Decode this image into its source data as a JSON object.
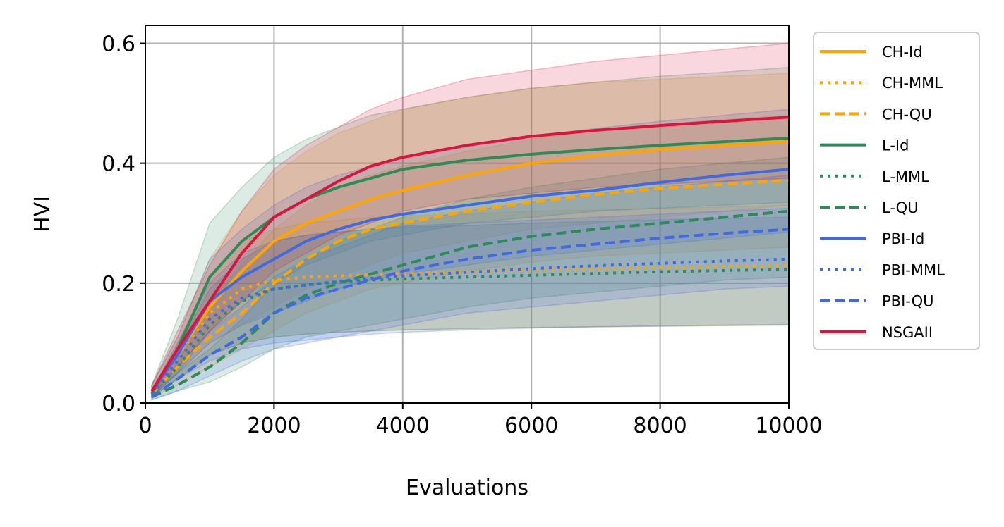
{
  "chart_data": {
    "type": "line",
    "xlabel": "Evaluations",
    "ylabel": "HVI",
    "xlim": [
      0,
      10000
    ],
    "ylim": [
      0,
      0.63
    ],
    "xticks": [
      0,
      2000,
      4000,
      6000,
      8000,
      10000
    ],
    "xtick_labels": [
      "0",
      "2000",
      "4000",
      "6000",
      "8000",
      "10000"
    ],
    "yticks": [
      0.0,
      0.2,
      0.4,
      0.6
    ],
    "ytick_labels": [
      "0.0",
      "0.2",
      "0.4",
      "0.6"
    ],
    "grid": true,
    "legend_position": "outside-right",
    "x": [
      100,
      500,
      1000,
      1500,
      2000,
      2500,
      3000,
      3500,
      4000,
      5000,
      6000,
      7000,
      8000,
      9000,
      10000
    ],
    "series": [
      {
        "name": "CH-Id",
        "color": "#FFA500",
        "dash": "solid",
        "values": [
          0.02,
          0.08,
          0.16,
          0.22,
          0.27,
          0.3,
          0.32,
          0.34,
          0.355,
          0.38,
          0.4,
          0.413,
          0.423,
          0.43,
          0.437
        ],
        "band_lower": [
          0.01,
          0.05,
          0.1,
          0.13,
          0.16,
          0.19,
          0.21,
          0.23,
          0.25,
          0.27,
          0.29,
          0.3,
          0.31,
          0.32,
          0.33
        ],
        "band_upper": [
          0.03,
          0.11,
          0.24,
          0.32,
          0.38,
          0.42,
          0.45,
          0.47,
          0.49,
          0.51,
          0.525,
          0.535,
          0.54,
          0.545,
          0.55
        ]
      },
      {
        "name": "CH-MML",
        "color": "#FFA500",
        "dash": "dotted",
        "values": [
          0.015,
          0.07,
          0.15,
          0.19,
          0.205,
          0.21,
          0.212,
          0.214,
          0.216,
          0.219,
          0.222,
          0.224,
          0.226,
          0.228,
          0.23
        ],
        "band_lower": [
          0.01,
          0.04,
          0.08,
          0.1,
          0.11,
          0.115,
          0.118,
          0.12,
          0.122,
          0.124,
          0.126,
          0.127,
          0.128,
          0.129,
          0.13
        ],
        "band_upper": [
          0.02,
          0.1,
          0.21,
          0.27,
          0.29,
          0.3,
          0.305,
          0.31,
          0.312,
          0.315,
          0.32,
          0.322,
          0.325,
          0.327,
          0.33
        ]
      },
      {
        "name": "CH-QU",
        "color": "#FFA500",
        "dash": "dashed",
        "values": [
          0.015,
          0.06,
          0.11,
          0.15,
          0.2,
          0.24,
          0.27,
          0.29,
          0.3,
          0.32,
          0.335,
          0.348,
          0.358,
          0.365,
          0.372
        ],
        "band_lower": [
          0.01,
          0.03,
          0.06,
          0.09,
          0.12,
          0.15,
          0.17,
          0.19,
          0.2,
          0.22,
          0.235,
          0.245,
          0.25,
          0.255,
          0.26
        ],
        "band_upper": [
          0.02,
          0.09,
          0.17,
          0.23,
          0.29,
          0.33,
          0.36,
          0.38,
          0.395,
          0.42,
          0.44,
          0.455,
          0.465,
          0.473,
          0.48
        ]
      },
      {
        "name": "L-Id",
        "color": "#2E8B57",
        "dash": "solid",
        "values": [
          0.015,
          0.09,
          0.21,
          0.27,
          0.31,
          0.34,
          0.36,
          0.375,
          0.39,
          0.405,
          0.415,
          0.423,
          0.43,
          0.436,
          0.442
        ],
        "band_lower": [
          0.01,
          0.05,
          0.12,
          0.17,
          0.2,
          0.23,
          0.25,
          0.27,
          0.28,
          0.3,
          0.31,
          0.32,
          0.325,
          0.33,
          0.335
        ],
        "band_upper": [
          0.03,
          0.14,
          0.3,
          0.36,
          0.41,
          0.44,
          0.46,
          0.48,
          0.49,
          0.51,
          0.525,
          0.535,
          0.545,
          0.552,
          0.56
        ]
      },
      {
        "name": "L-MML",
        "color": "#2E8B57",
        "dash": "dotted",
        "values": [
          0.015,
          0.06,
          0.13,
          0.17,
          0.19,
          0.197,
          0.202,
          0.205,
          0.207,
          0.21,
          0.213,
          0.216,
          0.219,
          0.221,
          0.223
        ],
        "band_lower": [
          0.01,
          0.04,
          0.08,
          0.1,
          0.11,
          0.115,
          0.118,
          0.12,
          0.122,
          0.124,
          0.126,
          0.127,
          0.128,
          0.129,
          0.13
        ],
        "band_upper": [
          0.02,
          0.09,
          0.19,
          0.24,
          0.27,
          0.28,
          0.285,
          0.29,
          0.293,
          0.296,
          0.3,
          0.303,
          0.306,
          0.308,
          0.31
        ]
      },
      {
        "name": "L-QU",
        "color": "#2E8B57",
        "dash": "dashed",
        "values": [
          0.01,
          0.03,
          0.06,
          0.1,
          0.15,
          0.18,
          0.2,
          0.215,
          0.23,
          0.26,
          0.278,
          0.29,
          0.3,
          0.31,
          0.32
        ],
        "band_lower": [
          0.005,
          0.02,
          0.035,
          0.06,
          0.09,
          0.11,
          0.12,
          0.13,
          0.14,
          0.16,
          0.175,
          0.185,
          0.195,
          0.205,
          0.21
        ],
        "band_upper": [
          0.02,
          0.05,
          0.09,
          0.14,
          0.2,
          0.24,
          0.27,
          0.29,
          0.31,
          0.34,
          0.36,
          0.375,
          0.39,
          0.4,
          0.41
        ]
      },
      {
        "name": "PBI-Id",
        "color": "#4169E1",
        "dash": "solid",
        "values": [
          0.02,
          0.08,
          0.17,
          0.21,
          0.24,
          0.27,
          0.29,
          0.305,
          0.315,
          0.33,
          0.345,
          0.355,
          0.368,
          0.38,
          0.39
        ],
        "band_lower": [
          0.01,
          0.05,
          0.1,
          0.13,
          0.15,
          0.17,
          0.19,
          0.205,
          0.215,
          0.23,
          0.245,
          0.255,
          0.265,
          0.275,
          0.285
        ],
        "band_upper": [
          0.03,
          0.11,
          0.24,
          0.29,
          0.33,
          0.36,
          0.38,
          0.395,
          0.41,
          0.43,
          0.445,
          0.458,
          0.47,
          0.48,
          0.49
        ]
      },
      {
        "name": "PBI-MML",
        "color": "#4169E1",
        "dash": "dotted",
        "values": [
          0.015,
          0.07,
          0.14,
          0.175,
          0.19,
          0.197,
          0.203,
          0.208,
          0.212,
          0.218,
          0.224,
          0.229,
          0.233,
          0.237,
          0.24
        ],
        "band_lower": [
          0.01,
          0.04,
          0.07,
          0.09,
          0.1,
          0.105,
          0.11,
          0.115,
          0.118,
          0.122,
          0.125,
          0.127,
          0.129,
          0.13,
          0.131
        ],
        "band_upper": [
          0.02,
          0.1,
          0.2,
          0.25,
          0.27,
          0.28,
          0.285,
          0.29,
          0.295,
          0.3,
          0.305,
          0.31,
          0.315,
          0.32,
          0.325
        ]
      },
      {
        "name": "PBI-QU",
        "color": "#4169E1",
        "dash": "dashed",
        "values": [
          0.01,
          0.04,
          0.08,
          0.11,
          0.15,
          0.175,
          0.19,
          0.205,
          0.22,
          0.24,
          0.255,
          0.265,
          0.275,
          0.283,
          0.29
        ],
        "band_lower": [
          0.005,
          0.02,
          0.045,
          0.07,
          0.09,
          0.1,
          0.11,
          0.12,
          0.13,
          0.15,
          0.16,
          0.17,
          0.18,
          0.19,
          0.195
        ],
        "band_upper": [
          0.02,
          0.06,
          0.12,
          0.16,
          0.21,
          0.24,
          0.26,
          0.28,
          0.3,
          0.32,
          0.335,
          0.35,
          0.36,
          0.37,
          0.38
        ]
      },
      {
        "name": "NSGAII",
        "color": "#DC143C",
        "dash": "solid",
        "values": [
          0.02,
          0.09,
          0.17,
          0.25,
          0.31,
          0.34,
          0.37,
          0.395,
          0.41,
          0.43,
          0.445,
          0.455,
          0.463,
          0.47,
          0.477
        ],
        "band_lower": [
          0.01,
          0.06,
          0.12,
          0.17,
          0.22,
          0.25,
          0.28,
          0.3,
          0.32,
          0.34,
          0.35,
          0.36,
          0.365,
          0.37,
          0.375
        ],
        "band_upper": [
          0.03,
          0.12,
          0.23,
          0.32,
          0.39,
          0.43,
          0.46,
          0.49,
          0.51,
          0.54,
          0.555,
          0.57,
          0.58,
          0.59,
          0.6
        ]
      }
    ]
  }
}
